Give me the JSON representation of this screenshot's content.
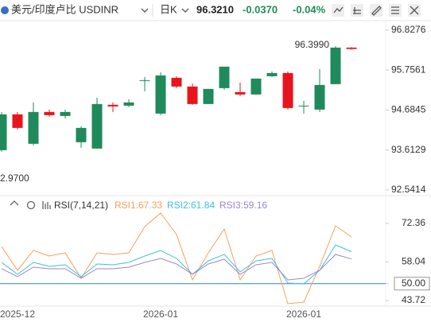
{
  "toolbar": {
    "symbol": "美元/印度卢比 USDINR",
    "period": "日K",
    "price": "96.3210",
    "change": "-0.0370",
    "change_pct": "-0.04%"
  },
  "chart_data": [
    {
      "type": "candlestick",
      "categories": [
        null,
        "2025-12",
        null,
        null,
        null,
        null,
        null,
        null,
        null,
        null,
        "2026-01",
        null,
        null,
        null,
        null,
        null,
        null,
        null,
        null,
        "2026-01",
        null,
        null,
        null
      ],
      "open": [
        93.608,
        94.568,
        93.779,
        94.632,
        94.525,
        93.821,
        93.651,
        94.824,
        94.802,
        95.463,
        94.589,
        95.548,
        95.314,
        94.845,
        95.271,
        95.165,
        95.101,
        95.591,
        95.676,
        94.781,
        94.696,
        95.378,
        96.358
      ],
      "high": [
        94.632,
        94.632,
        94.888,
        94.696,
        94.696,
        94.248,
        95.015,
        94.888,
        94.973,
        95.57,
        95.698,
        95.591,
        95.399,
        95.25,
        95.847,
        95.42,
        95.527,
        95.719,
        95.719,
        94.93,
        95.783,
        96.399,
        96.37
      ],
      "low": [
        93.566,
        94.163,
        93.736,
        94.504,
        94.461,
        93.672,
        93.651,
        94.632,
        94.76,
        95.186,
        94.547,
        95.271,
        94.824,
        94.845,
        95.229,
        95.058,
        95.101,
        95.57,
        94.696,
        94.589,
        94.632,
        95.378,
        96.3
      ],
      "close": [
        94.568,
        94.205,
        94.632,
        94.547,
        94.632,
        94.205,
        94.845,
        94.781,
        94.888,
        95.485,
        95.612,
        95.314,
        94.845,
        95.25,
        95.847,
        95.101,
        95.527,
        95.676,
        94.738,
        94.802,
        95.357,
        96.358,
        96.321
      ],
      "up_color": "#1f8a5b",
      "down_color": "#e8141c",
      "ylim": [
        92.39,
        97.08
      ],
      "yticks": [
        96.8276,
        95.7561,
        94.6845,
        93.6129,
        92.5414
      ],
      "annotations": [
        "96.3990",
        "2.9700"
      ]
    },
    {
      "type": "line",
      "title": "RSI(7,14,21)",
      "categories": [
        null,
        "2025-12",
        null,
        null,
        null,
        null,
        null,
        null,
        null,
        null,
        "2026-01",
        null,
        null,
        null,
        null,
        null,
        null,
        null,
        null,
        "2026-01",
        null,
        null,
        null
      ],
      "series": [
        {
          "name": "RSI1:67.33",
          "color": "#f4a25c",
          "values": [
            63.8,
            54.94,
            62.32,
            60.25,
            61.44,
            52.0,
            61.44,
            60.85,
            61.44,
            71.18,
            76.2,
            68.23,
            51.4,
            61.44,
            70.29,
            51.4,
            60.25,
            62.32,
            42.54,
            43.13,
            56.42,
            71.47,
            67.33
          ]
        },
        {
          "name": "RSI2:61.84",
          "color": "#3cc2d6",
          "values": [
            57.89,
            53.46,
            57.89,
            56.42,
            57.01,
            52.58,
            57.3,
            57.01,
            57.89,
            60.25,
            62.32,
            59.37,
            53.46,
            58.48,
            60.85,
            54.35,
            58.48,
            59.37,
            50.22,
            49.92,
            54.94,
            64.39,
            61.84
          ]
        },
        {
          "name": "RSI3:59.16",
          "color": "#9a86d8",
          "values": [
            55.53,
            52.58,
            56.12,
            55.53,
            55.53,
            52.0,
            55.53,
            55.53,
            56.12,
            57.89,
            59.37,
            57.3,
            53.46,
            57.3,
            59.07,
            53.46,
            57.01,
            57.89,
            51.4,
            52.0,
            54.94,
            60.85,
            59.16
          ]
        }
      ],
      "ylim": [
        41.65,
        77.08
      ],
      "yticks": [
        72.36,
        58.04,
        {
          "value": 50,
          "label": "50.00"
        },
        43.72
      ],
      "hline": {
        "value": 50,
        "color": "#2f7ff0"
      }
    }
  ]
}
